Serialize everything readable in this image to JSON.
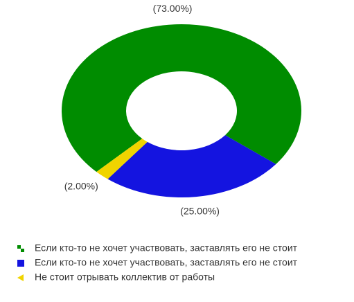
{
  "chart_data": {
    "type": "donut",
    "categories": [
      "Если кто-то не хочет участвовать, заставлять его не стоит",
      "Если кто-то не хочет участвовать, заставлять его не стоит",
      "Не стоит отрывать коллектив от работы"
    ],
    "values": [
      73,
      25,
      2
    ],
    "value_labels": [
      "(73.00%)",
      "(25.00%)",
      "(2.00%)"
    ],
    "colors": [
      "#008c00",
      "#1414e0",
      "#f0d400"
    ]
  }
}
